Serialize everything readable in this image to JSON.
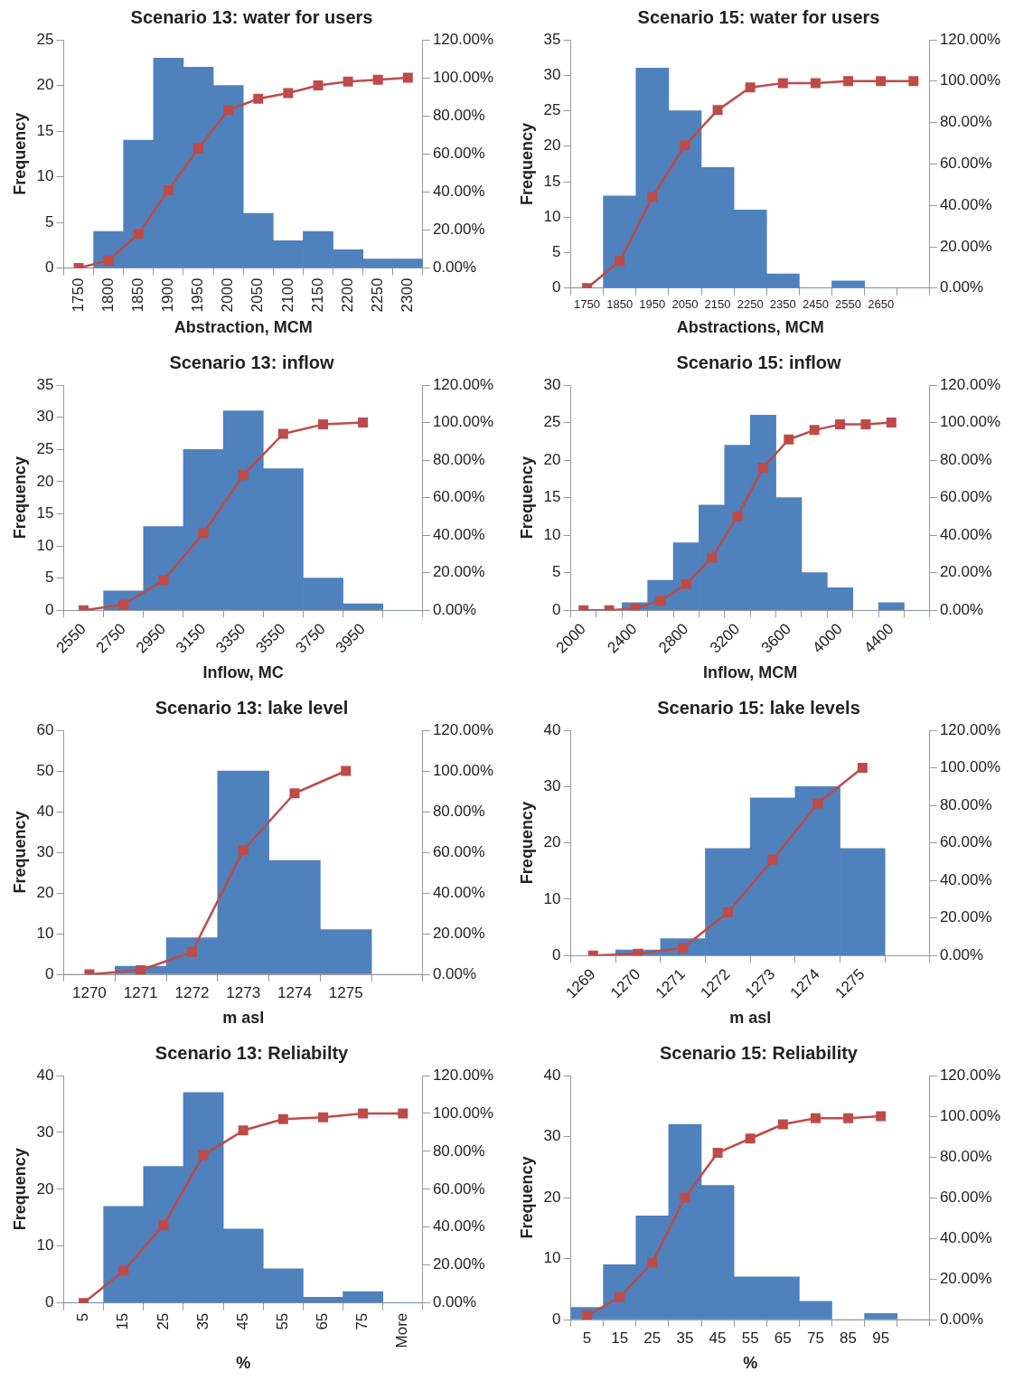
{
  "chart_data": [
    {
      "type": "bar",
      "title": "Scenario 13: water for users",
      "xlabel": "Abstraction, MCM",
      "ylabel": "Frequency",
      "categories": [
        "1750",
        "1800",
        "1850",
        "1900",
        "1950",
        "2000",
        "2050",
        "2100",
        "2150",
        "2200",
        "2250",
        "2300"
      ],
      "ylim": [
        0,
        25
      ],
      "yticks": [
        0,
        5,
        10,
        15,
        20,
        25
      ],
      "y2lim": [
        0,
        120
      ],
      "y2ticks": [
        {
          "value": 0,
          "label": "0.00%"
        },
        {
          "value": 20,
          "label": "20.00%"
        },
        {
          "value": 40,
          "label": "40.00%"
        },
        {
          "value": 60,
          "label": "60.00%"
        },
        {
          "value": 80,
          "label": "80.00%"
        },
        {
          "value": 100,
          "label": "100.00%"
        },
        {
          "value": 120,
          "label": "120.00%"
        }
      ],
      "grid": false,
      "legend": false,
      "marker": "square",
      "series": [
        {
          "color": "#4f81bd",
          "values": [
            0,
            4,
            14,
            23,
            22,
            20,
            6,
            3,
            4,
            2,
            1,
            1
          ]
        },
        {
          "type": "line",
          "axis": "y2",
          "color": "#be4b48",
          "values": [
            0,
            4,
            18,
            41,
            63,
            83,
            89,
            92,
            96,
            98,
            99,
            100
          ]
        }
      ]
    },
    {
      "type": "bar",
      "title": "Scenario 15: water for users",
      "xlabel": "Abstractions, MCM",
      "ylabel": "Frequency",
      "categories": [
        "1750",
        "1850",
        "1950",
        "2050",
        "2150",
        "2250",
        "2350",
        "2450",
        "2550",
        "2650",
        null
      ],
      "ylim": [
        0,
        35
      ],
      "yticks": [
        0,
        5,
        10,
        15,
        20,
        25,
        30,
        35
      ],
      "y2lim": [
        0,
        120
      ],
      "y2ticks": [
        {
          "value": 0,
          "label": "0.00%"
        },
        {
          "value": 20,
          "label": "20.00%"
        },
        {
          "value": 40,
          "label": "40.00%"
        },
        {
          "value": 60,
          "label": "60.00%"
        },
        {
          "value": 80,
          "label": "80.00%"
        },
        {
          "value": 100,
          "label": "100.00%"
        },
        {
          "value": 120,
          "label": "120.00%"
        }
      ],
      "grid": false,
      "legend": false,
      "marker": "square",
      "series": [
        {
          "color": "#4f81bd",
          "values": [
            0,
            13,
            31,
            25,
            17,
            11,
            2,
            0,
            1,
            0,
            0
          ]
        },
        {
          "type": "line",
          "axis": "y2",
          "color": "#be4b48",
          "values": [
            0,
            13,
            44,
            69,
            86,
            97,
            99,
            99,
            100,
            100,
            100
          ]
        }
      ]
    },
    {
      "type": "bar",
      "title": "Scenario 13: inflow",
      "xlabel": "Inflow, MC",
      "ylabel": "Frequency",
      "categories": [
        "2550",
        "2750",
        "2950",
        "3150",
        "3350",
        "3550",
        "3750",
        "3950",
        null
      ],
      "ylim": [
        0,
        35
      ],
      "yticks": [
        0,
        5,
        10,
        15,
        20,
        25,
        30,
        35
      ],
      "y2lim": [
        0,
        120
      ],
      "y2ticks": [
        {
          "value": 0,
          "label": "0.00%"
        },
        {
          "value": 20,
          "label": "20.00%"
        },
        {
          "value": 40,
          "label": "40.00%"
        },
        {
          "value": 60,
          "label": "60.00%"
        },
        {
          "value": 80,
          "label": "80.00%"
        },
        {
          "value": 100,
          "label": "100.00%"
        },
        {
          "value": 120,
          "label": "120.00%"
        }
      ],
      "grid": false,
      "legend": false,
      "marker": "square",
      "series": [
        {
          "color": "#4f81bd",
          "values": [
            0,
            3,
            13,
            25,
            31,
            22,
            5,
            1,
            0
          ]
        },
        {
          "type": "line",
          "axis": "y2",
          "color": "#be4b48",
          "values": [
            0,
            3,
            16,
            41,
            72,
            94,
            99,
            100,
            null
          ]
        }
      ]
    },
    {
      "type": "bar",
      "title": "Scenario 15: inflow",
      "xlabel": "Inflow, MCM",
      "ylabel": "Frequency",
      "categories": [
        "2000",
        null,
        "2400",
        null,
        "2800",
        null,
        "3200",
        null,
        "3600",
        null,
        "4000",
        null,
        "4400",
        null
      ],
      "ylim": [
        0,
        30
      ],
      "yticks": [
        0,
        5,
        10,
        15,
        20,
        25,
        30
      ],
      "y2lim": [
        0,
        120
      ],
      "y2ticks": [
        {
          "value": 0,
          "label": "0.00%"
        },
        {
          "value": 20,
          "label": "20.00%"
        },
        {
          "value": 40,
          "label": "40.00%"
        },
        {
          "value": 60,
          "label": "60.00%"
        },
        {
          "value": 80,
          "label": "80.00%"
        },
        {
          "value": 100,
          "label": "100.00%"
        },
        {
          "value": 120,
          "label": "120.00%"
        }
      ],
      "grid": false,
      "legend": false,
      "marker": "square",
      "series": [
        {
          "color": "#4f81bd",
          "values": [
            0,
            0,
            1,
            4,
            9,
            14,
            22,
            26,
            15,
            5,
            3,
            0,
            1,
            0
          ]
        },
        {
          "type": "line",
          "axis": "y2",
          "color": "#be4b48",
          "values": [
            0,
            0,
            1,
            5,
            14,
            28,
            50,
            76,
            91,
            96,
            99,
            99,
            100,
            null
          ]
        }
      ]
    },
    {
      "type": "bar",
      "title": "Scenario 13: lake level",
      "xlabel": "m asl",
      "ylabel": "Frequency",
      "categories": [
        "1270",
        "1271",
        "1272",
        "1273",
        "1274",
        "1275",
        null
      ],
      "ylim": [
        0,
        60
      ],
      "yticks": [
        0,
        10,
        20,
        30,
        40,
        50,
        60
      ],
      "y2lim": [
        0,
        120
      ],
      "y2ticks": [
        {
          "value": 0,
          "label": "0.00%"
        },
        {
          "value": 20,
          "label": "20.00%"
        },
        {
          "value": 40,
          "label": "40.00%"
        },
        {
          "value": 60,
          "label": "60.00%"
        },
        {
          "value": 80,
          "label": "80.00%"
        },
        {
          "value": 100,
          "label": "100.00%"
        },
        {
          "value": 120,
          "label": "120.00%"
        }
      ],
      "grid": false,
      "legend": false,
      "marker": "square",
      "series": [
        {
          "color": "#4f81bd",
          "values": [
            0,
            2,
            9,
            50,
            28,
            11,
            0
          ]
        },
        {
          "type": "line",
          "axis": "y2",
          "color": "#be4b48",
          "values": [
            0,
            2,
            11,
            61,
            89,
            100,
            null
          ]
        }
      ]
    },
    {
      "type": "bar",
      "title": "Scenario 15: lake levels",
      "xlabel": "m asl",
      "ylabel": "Frequency",
      "categories": [
        "1269",
        "1270",
        "1271",
        "1272",
        "1273",
        "1274",
        "1275",
        null
      ],
      "ylim": [
        0,
        40
      ],
      "yticks": [
        0,
        10,
        20,
        30,
        40
      ],
      "y2lim": [
        0,
        120
      ],
      "y2ticks": [
        {
          "value": 0,
          "label": "0.00%"
        },
        {
          "value": 20,
          "label": "20.00%"
        },
        {
          "value": 40,
          "label": "40.00%"
        },
        {
          "value": 60,
          "label": "60.00%"
        },
        {
          "value": 80,
          "label": "80.00%"
        },
        {
          "value": 100,
          "label": "100.00%"
        },
        {
          "value": 120,
          "label": "120.00%"
        }
      ],
      "grid": false,
      "legend": false,
      "marker": "square",
      "series": [
        {
          "color": "#4f81bd",
          "values": [
            0,
            1,
            3,
            19,
            28,
            30,
            19,
            0
          ]
        },
        {
          "type": "line",
          "axis": "y2",
          "color": "#be4b48",
          "values": [
            0,
            1,
            4,
            23,
            51,
            81,
            100,
            null
          ]
        }
      ]
    },
    {
      "type": "bar",
      "title": "Scenario 13: Reliabilty",
      "xlabel": "%",
      "ylabel": "Frequency",
      "categories": [
        "5",
        "15",
        "25",
        "35",
        "45",
        "55",
        "65",
        "75",
        "More"
      ],
      "ylim": [
        0,
        40
      ],
      "yticks": [
        0,
        10,
        20,
        30,
        40
      ],
      "y2lim": [
        0,
        120
      ],
      "y2ticks": [
        {
          "value": 0,
          "label": "0.00%"
        },
        {
          "value": 20,
          "label": "20.00%"
        },
        {
          "value": 40,
          "label": "40.00%"
        },
        {
          "value": 60,
          "label": "60.00%"
        },
        {
          "value": 80,
          "label": "80.00%"
        },
        {
          "value": 100,
          "label": "100.00%"
        },
        {
          "value": 120,
          "label": "120.00%"
        }
      ],
      "grid": false,
      "legend": false,
      "marker": "square",
      "series": [
        {
          "color": "#4f81bd",
          "values": [
            0,
            17,
            24,
            37,
            13,
            6,
            1,
            2,
            0
          ]
        },
        {
          "type": "line",
          "axis": "y2",
          "color": "#be4b48",
          "values": [
            0,
            17,
            41,
            78,
            91,
            97,
            98,
            100,
            100
          ]
        }
      ]
    },
    {
      "type": "bar",
      "title": "Scenario 15: Reliability",
      "xlabel": "%",
      "ylabel": "Frequency",
      "categories": [
        "5",
        "15",
        "25",
        "35",
        "45",
        "55",
        "65",
        "75",
        "85",
        "95",
        null
      ],
      "ylim": [
        0,
        40
      ],
      "yticks": [
        0,
        10,
        20,
        30,
        40
      ],
      "y2lim": [
        0,
        120
      ],
      "y2ticks": [
        {
          "value": 0,
          "label": "0.00%"
        },
        {
          "value": 20,
          "label": "20.00%"
        },
        {
          "value": 40,
          "label": "40.00%"
        },
        {
          "value": 60,
          "label": "60.00%"
        },
        {
          "value": 80,
          "label": "80.00%"
        },
        {
          "value": 100,
          "label": "100.00%"
        },
        {
          "value": 120,
          "label": "120.00%"
        }
      ],
      "grid": false,
      "legend": false,
      "marker": "square",
      "series": [
        {
          "color": "#4f81bd",
          "values": [
            2,
            9,
            17,
            32,
            22,
            7,
            7,
            3,
            0,
            1,
            0
          ]
        },
        {
          "type": "line",
          "axis": "y2",
          "color": "#be4b48",
          "values": [
            2,
            11,
            28,
            60,
            82,
            89,
            96,
            99,
            99,
            100,
            null
          ]
        }
      ]
    }
  ]
}
